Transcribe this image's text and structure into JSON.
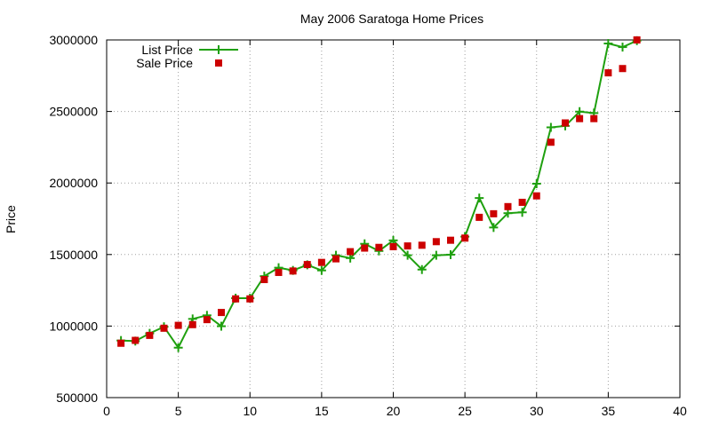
{
  "chart_data": {
    "type": "line",
    "title": "May 2006 Saratoga Home Prices",
    "xlabel": "",
    "ylabel": "Price",
    "xlim": [
      0,
      40
    ],
    "ylim": [
      500000,
      3000000
    ],
    "xticks": [
      "0",
      "5",
      "10",
      "15",
      "20",
      "25",
      "30",
      "35",
      "40"
    ],
    "yticks": [
      "500000",
      "1000000",
      "1500000",
      "2000000",
      "2500000",
      "3000000"
    ],
    "grid": true,
    "legend_position": "top-left",
    "x": [
      1,
      2,
      3,
      4,
      5,
      6,
      7,
      8,
      9,
      10,
      11,
      12,
      13,
      14,
      15,
      16,
      17,
      18,
      19,
      20,
      21,
      22,
      23,
      24,
      25,
      26,
      27,
      28,
      29,
      30,
      31,
      32,
      33,
      34,
      35,
      36,
      37
    ],
    "series": [
      {
        "name": "List Price",
        "style": "line+plus",
        "color": "#1fa00f",
        "values": [
          899000,
          895000,
          949000,
          995000,
          849000,
          1050000,
          1075000,
          999000,
          1195000,
          1195000,
          1349000,
          1408000,
          1389000,
          1428000,
          1389000,
          1495000,
          1475000,
          1575000,
          1525000,
          1599000,
          1495000,
          1395000,
          1495000,
          1499000,
          1625000,
          1895000,
          1689000,
          1789000,
          1795000,
          1995000,
          2389000,
          2399000,
          2499000,
          2489000,
          2975000,
          2950000,
          2995000
        ]
      },
      {
        "name": "Sale Price",
        "style": "points",
        "color": "#cc0000",
        "values": [
          880000,
          900000,
          935000,
          985000,
          1005000,
          1010000,
          1045000,
          1095000,
          1190000,
          1190000,
          1325000,
          1375000,
          1385000,
          1430000,
          1445000,
          1470000,
          1520000,
          1545000,
          1550000,
          1555000,
          1560000,
          1565000,
          1590000,
          1600000,
          1615000,
          1760000,
          1785000,
          1835000,
          1865000,
          1910000,
          2285000,
          2420000,
          2450000,
          2450000,
          2770000,
          2800000,
          3000000
        ]
      }
    ]
  }
}
